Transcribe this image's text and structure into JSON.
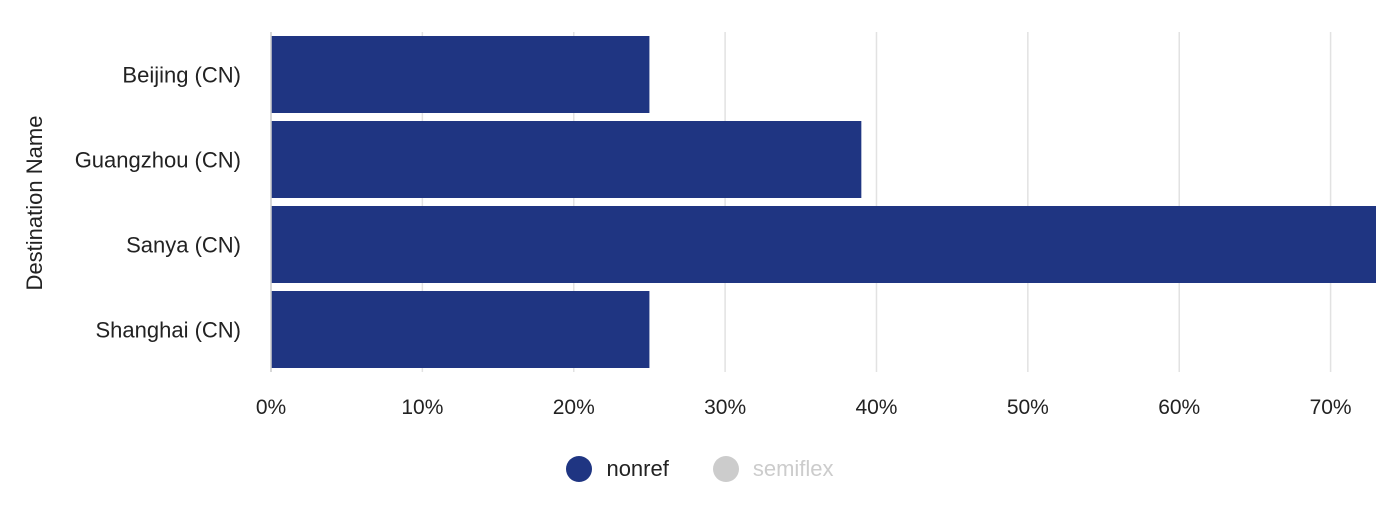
{
  "chart_data": {
    "type": "bar",
    "orientation": "horizontal",
    "ylabel": "Destination Name",
    "xlabel": "",
    "categories": [
      "Beijing (CN)",
      "Guangzhou (CN)",
      "Sanya (CN)",
      "Shanghai (CN)"
    ],
    "series": [
      {
        "name": "nonref",
        "values": [
          25,
          39,
          73,
          25
        ],
        "color": "#1f3582",
        "active": true
      },
      {
        "name": "semiflex",
        "values": [
          0,
          0,
          0,
          0
        ],
        "color": "#cccccc",
        "active": false
      }
    ],
    "xlim": [
      0,
      73
    ],
    "x_ticks": [
      0,
      10,
      20,
      30,
      40,
      50,
      60,
      70
    ],
    "x_tick_format": "percent",
    "grid": "vertical",
    "legend_position": "bottom-center"
  },
  "legend": [
    {
      "label": "nonref",
      "color": "#1f3582",
      "active": true
    },
    {
      "label": "semiflex",
      "color": "#cccccc",
      "active": false
    }
  ]
}
